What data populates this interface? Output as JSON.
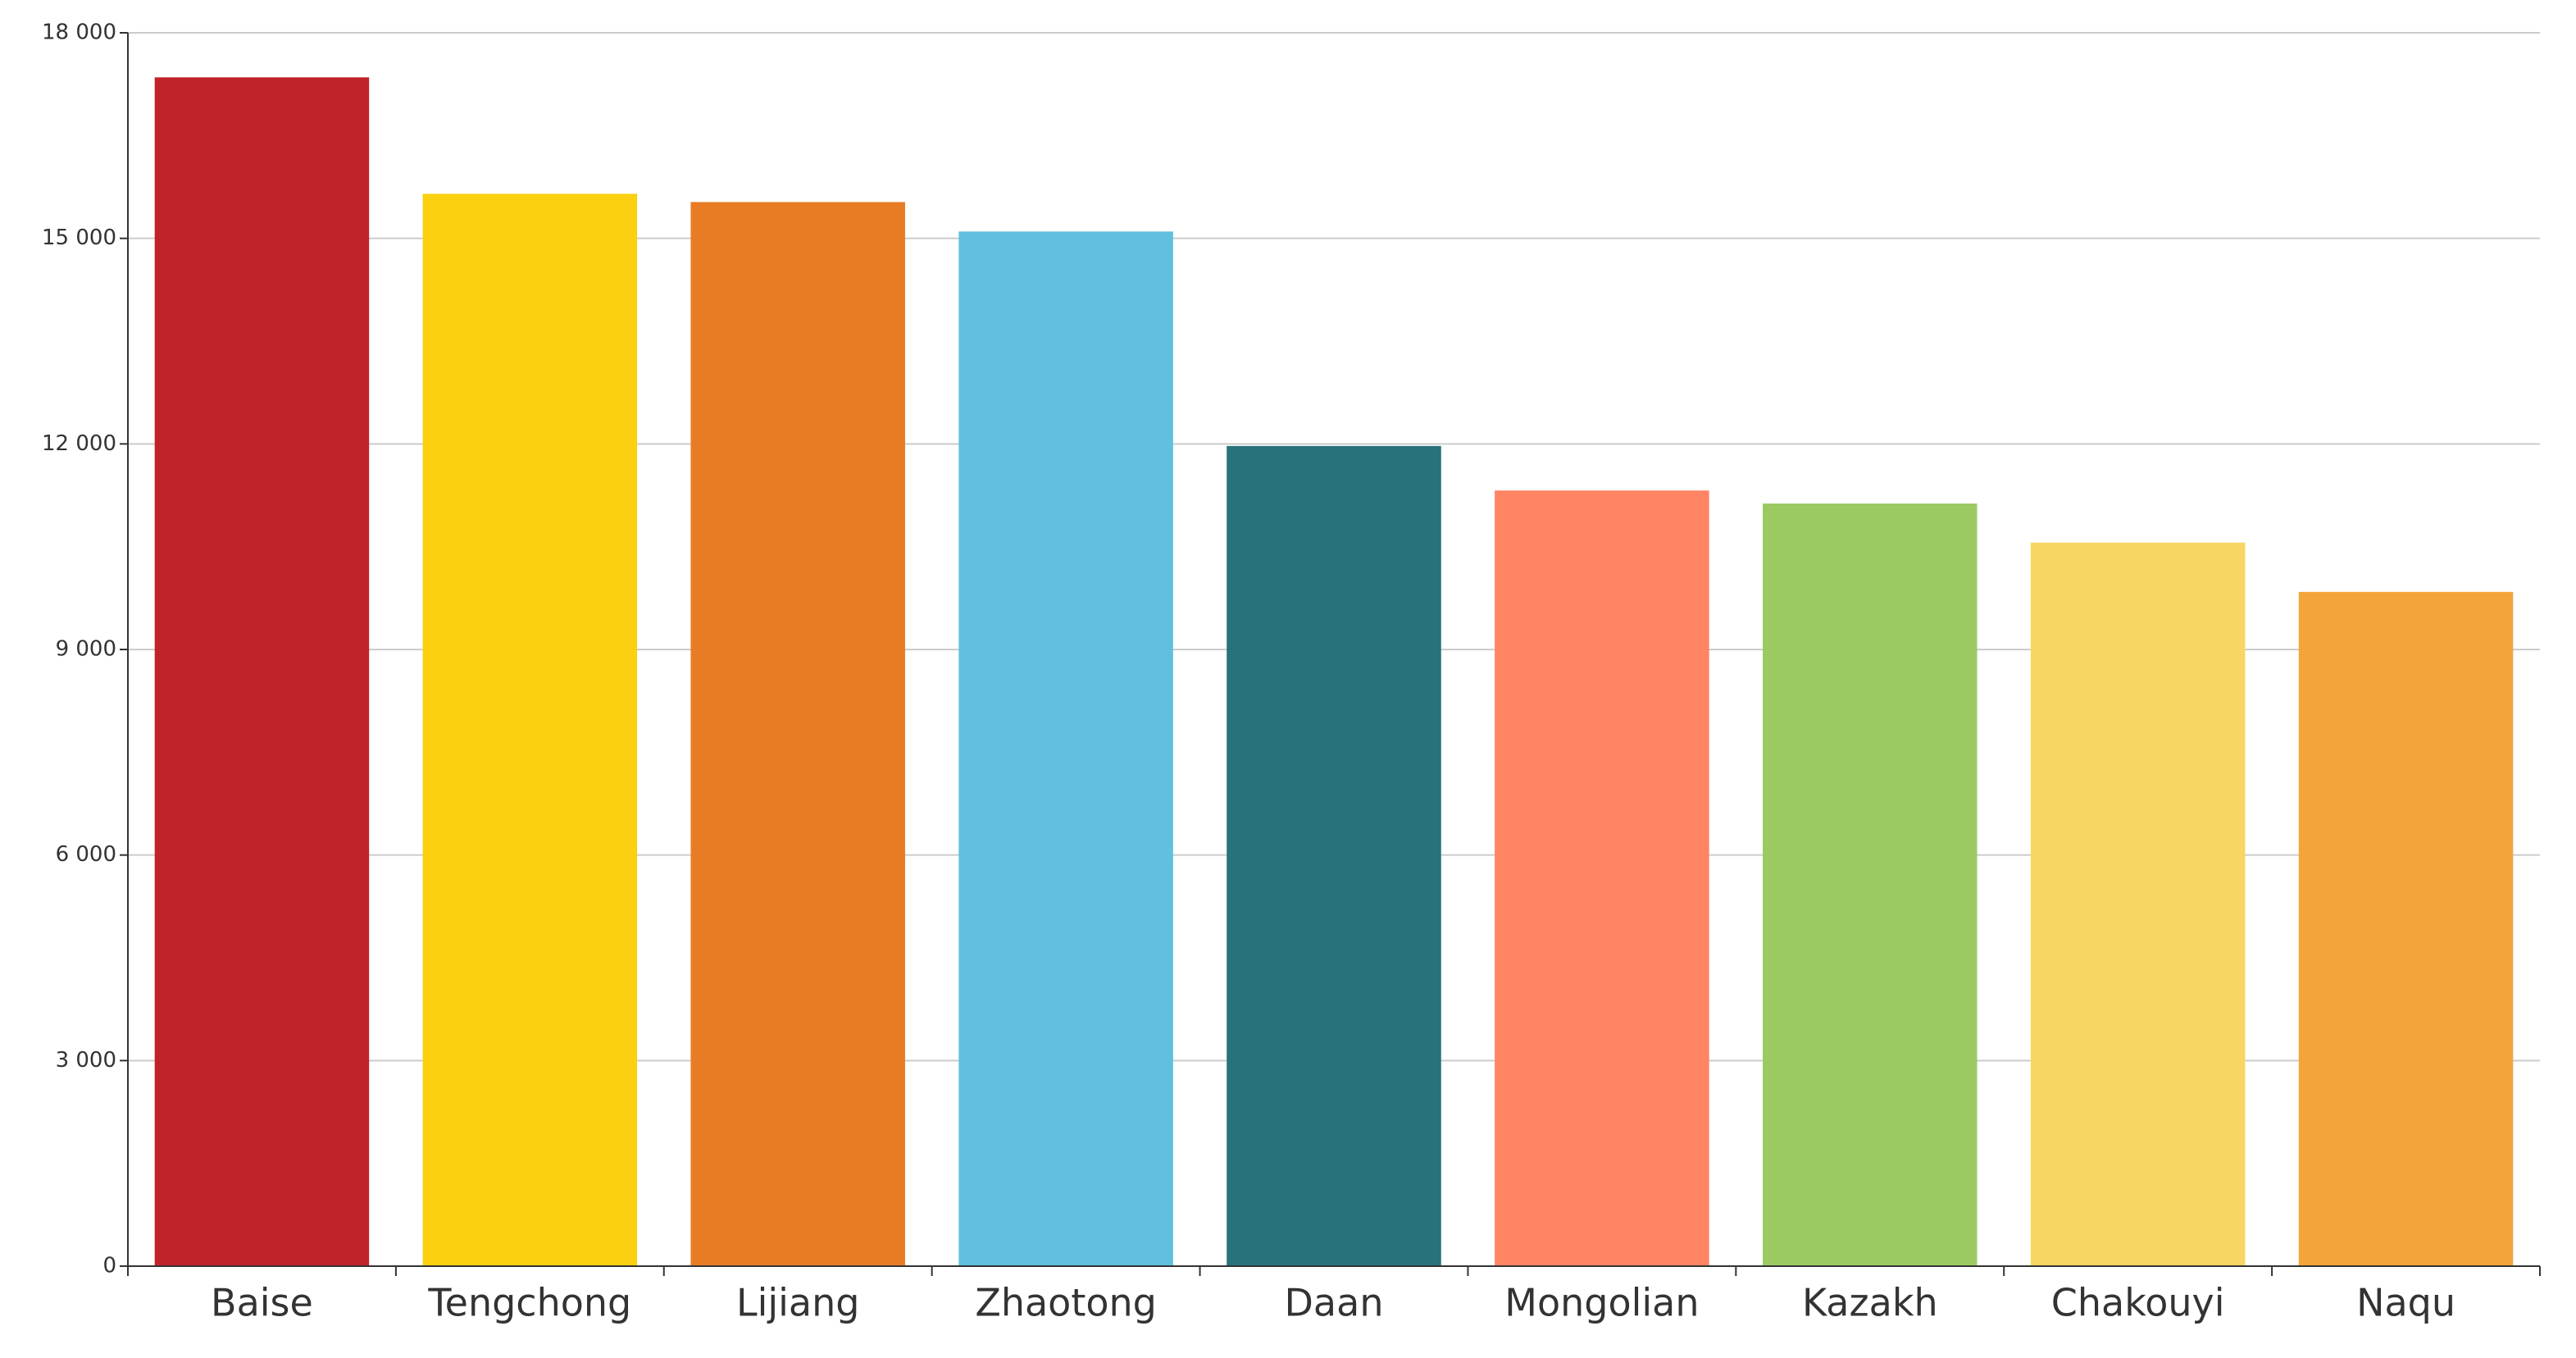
{
  "chart_data": {
    "type": "bar",
    "categories": [
      "Baise",
      "Tengchong",
      "Lijiang",
      "Zhaotong",
      "Daan",
      "Mongolian",
      "Kazakh",
      "Chakouyi",
      "Naqu"
    ],
    "values": [
      17350,
      15650,
      15530,
      15100,
      11970,
      11320,
      11130,
      10560,
      9840
    ],
    "colors": [
      "#c1232b",
      "#fad010",
      "#e87c25",
      "#60c0dd",
      "#27727b",
      "#ff8463",
      "#9bca63",
      "#f8d663",
      "#f3a43b"
    ],
    "ylim": [
      0,
      18000
    ],
    "yticks": [
      0,
      {
        "value": 3000,
        "label": "3 000"
      },
      {
        "value": 6000,
        "label": "6 000"
      },
      {
        "value": 9000,
        "label": "9 000"
      },
      {
        "value": 12000,
        "label": "12 000"
      },
      {
        "value": 15000,
        "label": "15 000"
      },
      {
        "value": 18000,
        "label": "18 000"
      }
    ],
    "grid": true
  }
}
